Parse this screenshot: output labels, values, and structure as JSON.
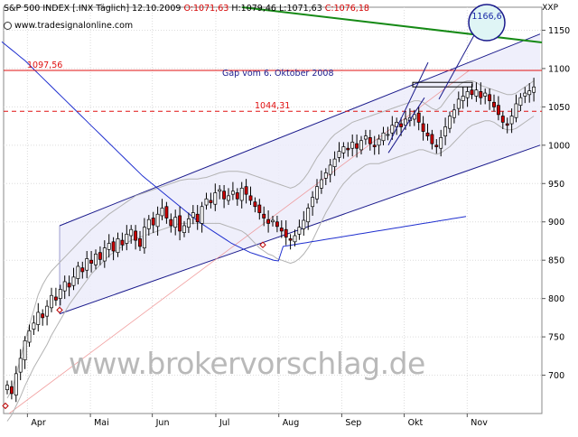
{
  "header": {
    "symbol": "S&P 500 INDEX [.INX Täglich] 12.10.2009",
    "open": "O:1071,63",
    "high": "H:1079,46",
    "low": "L:1071,63",
    "close": "C:1076,18",
    "site": "www.tradesignalonline.com",
    "corner_label": "XXP"
  },
  "watermark": "www.brokervorschlag.de",
  "colors": {
    "up": "#ffffff",
    "down": "#cc0000",
    "channel": "#1a1a8c",
    "channel_fill": "#ececfa",
    "bollinger": "#b3b3b3",
    "ma_long": "#1f2fcf",
    "trend_green": "#168a16",
    "level_red": "#e01010",
    "grid": "#dcdcdc"
  },
  "chart_data": {
    "type": "candlestick",
    "title": "S&P 500 INDEX [.INX Täglich] 12.10.2009",
    "x_labels": [
      "Apr",
      "Mai",
      "Jun",
      "Jul",
      "Aug",
      "Sep",
      "Okt",
      "Nov"
    ],
    "y_ticks": [
      700,
      750,
      800,
      850,
      900,
      950,
      1000,
      1050,
      1100,
      1150
    ],
    "ylim": [
      650,
      1180
    ],
    "axis_position": "right",
    "grid": true,
    "levels": [
      {
        "name": "resistance",
        "value": 1097.56,
        "label": "1097,56",
        "style": "solid",
        "color": "#e01010"
      },
      {
        "name": "gap",
        "value": 1044.31,
        "label": "1044,31",
        "style": "dashed",
        "color": "#e01010"
      }
    ],
    "annotations": [
      {
        "text": "Gap vom 6. Oktober 2008",
        "value": 1097.56
      },
      {
        "text": "1166,6",
        "value": 1166.6
      }
    ],
    "candles_close": [
      687,
      676,
      702,
      722,
      745,
      758,
      768,
      782,
      775,
      790,
      804,
      798,
      812,
      822,
      815,
      828,
      842,
      835,
      852,
      846,
      858,
      851,
      866,
      872,
      862,
      878,
      870,
      884,
      890,
      876,
      868,
      893,
      903,
      896,
      910,
      918,
      905,
      895,
      906,
      888,
      895,
      904,
      912,
      900,
      920,
      930,
      925,
      938,
      942,
      930,
      934,
      940,
      930,
      944,
      936,
      928,
      920,
      912,
      905,
      898,
      902,
      894,
      888,
      880,
      876,
      882,
      893,
      902,
      918,
      932,
      946,
      955,
      964,
      974,
      982,
      992,
      998,
      994,
      1004,
      996,
      1006,
      1012,
      1002,
      998,
      1008,
      1016,
      1014,
      1026,
      1030,
      1024,
      1034,
      1036,
      1040,
      1030,
      1018,
      1012,
      1002,
      998,
      1010,
      1024,
      1038,
      1046,
      1060,
      1064,
      1070,
      1066,
      1072,
      1062,
      1068,
      1058,
      1050,
      1040,
      1030,
      1026,
      1038,
      1054,
      1062,
      1068,
      1071,
      1076
    ],
    "bollinger_upper": [
      670,
      680,
      700,
      722,
      745,
      765,
      785,
      805,
      818,
      828,
      836,
      842,
      848,
      854,
      860,
      866,
      872,
      878,
      884,
      890,
      895,
      900,
      905,
      910,
      914,
      918,
      922,
      926,
      930,
      934,
      936,
      938,
      940,
      942,
      944,
      946,
      948,
      950,
      952,
      954,
      955,
      956,
      956,
      956,
      957,
      958,
      960,
      962,
      964,
      965,
      966,
      966,
      966,
      965,
      964,
      962,
      960,
      958,
      956,
      954,
      952,
      950,
      948,
      946,
      944,
      946,
      950,
      956,
      964,
      974,
      984,
      992,
      1000,
      1008,
      1014,
      1018,
      1022,
      1026,
      1030,
      1032,
      1034,
      1036,
      1038,
      1040,
      1042,
      1044,
      1046,
      1048,
      1050,
      1052,
      1054,
      1056,
      1058,
      1058,
      1056,
      1052,
      1048,
      1046,
      1050,
      1058,
      1066,
      1072,
      1078,
      1082,
      1084,
      1084,
      1082,
      1078,
      1076,
      1074,
      1072,
      1070,
      1068,
      1066,
      1066,
      1068,
      1072,
      1076,
      1080,
      1084
    ],
    "bollinger_lower": [
      640,
      648,
      660,
      672,
      686,
      698,
      710,
      720,
      730,
      740,
      752,
      762,
      772,
      782,
      792,
      800,
      808,
      816,
      824,
      832,
      838,
      844,
      850,
      856,
      860,
      864,
      868,
      872,
      876,
      878,
      880,
      882,
      884,
      886,
      888,
      890,
      892,
      894,
      896,
      898,
      898,
      898,
      898,
      898,
      898,
      898,
      898,
      898,
      898,
      896,
      894,
      892,
      890,
      888,
      884,
      878,
      872,
      866,
      862,
      858,
      856,
      852,
      850,
      848,
      846,
      848,
      852,
      858,
      866,
      876,
      888,
      900,
      912,
      922,
      932,
      942,
      950,
      956,
      962,
      966,
      970,
      974,
      976,
      976,
      976,
      978,
      980,
      982,
      984,
      986,
      988,
      990,
      992,
      994,
      994,
      992,
      990,
      988,
      990,
      994,
      998,
      1004,
      1010,
      1016,
      1022,
      1026,
      1028,
      1030,
      1032,
      1032,
      1030,
      1026,
      1022,
      1020,
      1020,
      1022,
      1026,
      1030,
      1034,
      1038
    ],
    "ma_long": [
      1135,
      1130,
      1125,
      1120,
      1115,
      1110,
      1104,
      1098,
      1092,
      1086,
      1080,
      1074,
      1068,
      1062,
      1056,
      1050,
      1044,
      1038,
      1032,
      1026,
      1020,
      1014,
      1008,
      1002,
      996,
      990,
      984,
      978,
      972,
      966,
      960,
      955,
      950,
      945,
      940,
      935,
      930,
      925,
      920,
      915,
      910,
      905,
      900,
      896,
      892,
      888,
      884,
      880,
      876,
      872,
      869,
      866,
      863,
      860,
      858,
      856,
      854,
      852,
      850,
      849,
      868,
      869,
      870,
      871,
      872,
      873,
      874,
      875,
      876,
      877,
      878,
      879,
      880,
      881,
      882,
      883,
      884,
      885,
      886,
      887,
      888,
      889,
      890,
      891,
      892,
      893,
      894,
      895,
      896,
      897,
      898,
      899,
      900,
      901,
      902,
      903,
      904,
      905,
      906,
      907
    ],
    "channel_upper": [
      {
        "x": 0.0,
        "y": 895
      },
      {
        "x": 1.0,
        "y": 1145
      }
    ],
    "channel_lower": [
      {
        "x": 0.0,
        "y": 780
      },
      {
        "x": 1.0,
        "y": 1000
      }
    ],
    "green_trend": [
      {
        "x": 0.0,
        "y": 1188
      },
      {
        "x": 1.0,
        "y": 1150
      }
    ],
    "thin_red_trend": [
      {
        "x": 0.0,
        "y": 650
      },
      {
        "x": 1.0,
        "y": 1098
      }
    ]
  }
}
